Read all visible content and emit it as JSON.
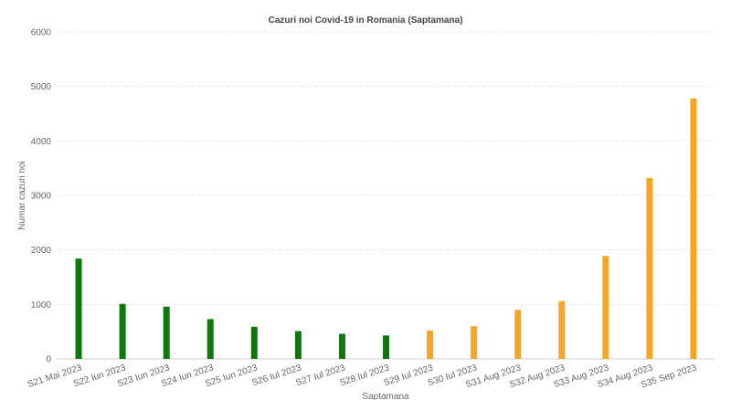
{
  "chart_data": {
    "type": "bar",
    "title": "Cazuri noi Covid-19 in Romania (Saptamana)",
    "xlabel": "Saptamana",
    "ylabel": "Numar cazuri noi",
    "ylim": [
      0,
      6000
    ],
    "yticks": [
      0,
      1000,
      2000,
      3000,
      4000,
      5000,
      6000
    ],
    "grid": true,
    "categories": [
      "S21 Mai 2023",
      "S22 Iun 2023",
      "S23 Iun 2023",
      "S24 Iun 2023",
      "S25 Iun 2023",
      "S26 Iul 2023",
      "S27 Iul 2023",
      "S28 Iul 2023",
      "S29 Iul 2023",
      "S30 Iul 2023",
      "S31 Aug 2023",
      "S32 Aug 2023",
      "S33 Aug 2023",
      "S34 Aug 2023",
      "S35 Sep 2023"
    ],
    "values": [
      1840,
      1010,
      960,
      730,
      590,
      510,
      460,
      430,
      520,
      600,
      900,
      1060,
      1890,
      3320,
      4780
    ],
    "bar_colors": [
      "#0b7a0b",
      "#0b7a0b",
      "#0b7a0b",
      "#0b7a0b",
      "#0b7a0b",
      "#0b7a0b",
      "#0b7a0b",
      "#0b7a0b",
      "#f5a623",
      "#f5a623",
      "#f5a623",
      "#f5a623",
      "#f5a623",
      "#f5a623",
      "#f5a623"
    ]
  }
}
